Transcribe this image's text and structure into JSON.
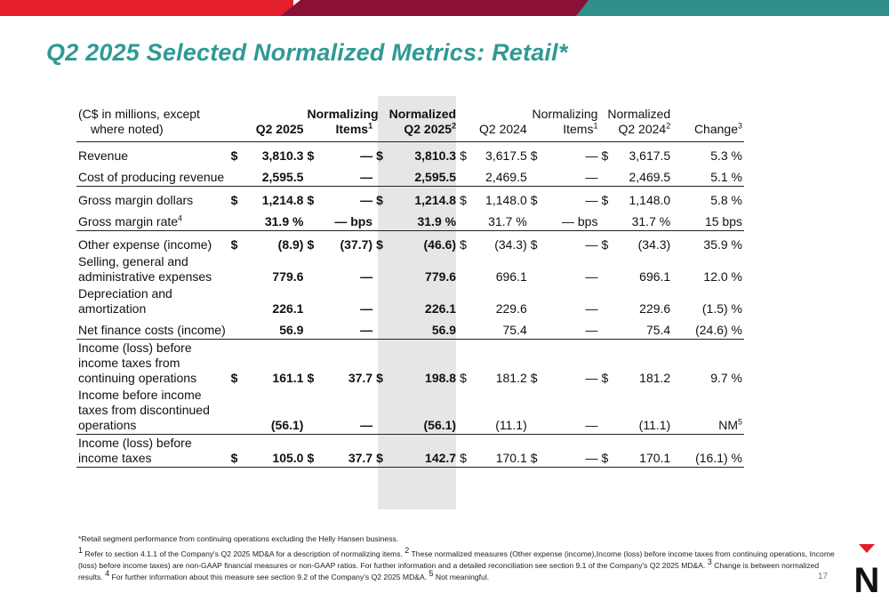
{
  "page": {
    "title": "Q2 2025 Selected Normalized Metrics: Retail*",
    "page_number": "17"
  },
  "brand_colors": {
    "red": "#e41e2b",
    "maroon": "#8b1035",
    "teal": "#2f8f8b",
    "title_teal": "#2e9a94"
  },
  "table": {
    "header": {
      "label_line1": "(C$ in millions, except",
      "label_line2": "where noted)",
      "q2_2025": "Q2 2025",
      "norm_items_line1": "Normalizing",
      "norm_items_line2": "Items",
      "norm_items_sup": "1",
      "normalized_q2_2025_line1": "Normalized",
      "normalized_q2_2025_line2": "Q2 2025",
      "normalized_q2_2025_sup": "2",
      "q2_2024": "Q2 2024",
      "norm_items_2024_line1": "Normalizing",
      "norm_items_2024_line2": "Items",
      "norm_items_2024_sup": "1",
      "normalized_q2_2024_line1": "Normalized",
      "normalized_q2_2024_line2": "Q2 2024",
      "normalized_q2_2024_sup": "2",
      "change": "Change",
      "change_sup": "3"
    },
    "rows": [
      {
        "label": "Revenue",
        "label_sup": "",
        "cur": "$",
        "q2_2025": "3,810.3",
        "norm": "—",
        "normalized_2025": "3,810.3",
        "q2_2024": "3,617.5",
        "norm_2024": "—",
        "normalized_2024": "3,617.5",
        "change": "5.3 %",
        "change_sup": ""
      },
      {
        "label": "Cost of producing revenue",
        "label_sup": "",
        "cur": "",
        "q2_2025": "2,595.5",
        "norm": "—",
        "normalized_2025": "2,595.5",
        "q2_2024": "2,469.5",
        "norm_2024": "—",
        "normalized_2024": "2,469.5",
        "change": "5.1 %",
        "change_sup": ""
      },
      {
        "label": "Gross margin dollars",
        "label_sup": "",
        "cur": "$",
        "q2_2025": "1,214.8",
        "norm": "—",
        "normalized_2025": "1,214.8",
        "q2_2024": "1,148.0",
        "norm_2024": "—",
        "normalized_2024": "1,148.0",
        "change": "5.8 %",
        "change_sup": ""
      },
      {
        "label": "Gross margin rate",
        "label_sup": "4",
        "cur": "",
        "q2_2025": "31.9 %",
        "norm": "— bps",
        "normalized_2025": "31.9 %",
        "q2_2024": "31.7 %",
        "norm_2024": "— bps",
        "normalized_2024": "31.7 %",
        "change": "15 bps",
        "change_sup": ""
      },
      {
        "label": "Other expense (income)",
        "label_sup": "",
        "cur": "$",
        "q2_2025": "(8.9)",
        "norm": "(37.7)",
        "normalized_2025": "(46.6)",
        "q2_2024": "(34.3)",
        "norm_2024": "—",
        "normalized_2024": "(34.3)",
        "change": "35.9 %",
        "change_sup": ""
      },
      {
        "label": "Selling, general and administrative expenses",
        "label_sup": "",
        "cur": "",
        "q2_2025": "779.6",
        "norm": "—",
        "normalized_2025": "779.6",
        "q2_2024": "696.1",
        "norm_2024": "—",
        "normalized_2024": "696.1",
        "change": "12.0 %",
        "change_sup": ""
      },
      {
        "label": "Depreciation and amortization",
        "label_sup": "",
        "cur": "",
        "q2_2025": "226.1",
        "norm": "—",
        "normalized_2025": "226.1",
        "q2_2024": "229.6",
        "norm_2024": "—",
        "normalized_2024": "229.6",
        "change": "(1.5) %",
        "change_sup": ""
      },
      {
        "label": "Net finance costs (income)",
        "label_sup": "",
        "cur": "",
        "q2_2025": "56.9",
        "norm": "—",
        "normalized_2025": "56.9",
        "q2_2024": "75.4",
        "norm_2024": "—",
        "normalized_2024": "75.4",
        "change": "(24.6) %",
        "change_sup": ""
      },
      {
        "label": "Income (loss) before income taxes from continuing operations",
        "label_sup": "",
        "cur": "$",
        "q2_2025": "161.1",
        "norm": "37.7",
        "normalized_2025": "198.8",
        "q2_2024": "181.2",
        "norm_2024": "—",
        "normalized_2024": "181.2",
        "change": "9.7 %",
        "change_sup": ""
      },
      {
        "label": "Income before income taxes from discontinued operations",
        "label_sup": "",
        "cur": "",
        "q2_2025": "(56.1)",
        "norm": "—",
        "normalized_2025": "(56.1)",
        "q2_2024": "(11.1)",
        "norm_2024": "—",
        "normalized_2024": "(11.1)",
        "change": "NM",
        "change_sup": "5"
      },
      {
        "label": "Income (loss) before income taxes",
        "label_sup": "",
        "cur": "$",
        "q2_2025": "105.0",
        "norm": "37.7",
        "normalized_2025": "142.7",
        "q2_2024": "170.1",
        "norm_2024": "—",
        "normalized_2024": "170.1",
        "change": "(16.1) %",
        "change_sup": ""
      }
    ]
  },
  "footnotes": {
    "retail_note": "*Retail segment performance from continuing operations excluding the Helly Hansen business.",
    "n1_sup": "1",
    "n1": " Refer to section 4.1.1 of the Company's Q2 2025 MD&A for a description of normalizing items. ",
    "n2_sup": "2",
    "n2": " These normalized measures (Other expense (income),Income (loss) before income taxes from continuing operations, Income (loss) before income taxes) are non-GAAP financial measures or non-GAAP ratios. For further information and a detailed reconciliation see section 9.1 of the Company's Q2 2025 MD&A. ",
    "n3_sup": "3",
    "n3": " Change is between normalized results. ",
    "n4_sup": "4",
    "n4": " For further information about this measure see section 9.2 of the Company's Q2 2025 MD&A. ",
    "n5_sup": "5",
    "n5": " Not meaningful."
  },
  "logo": {
    "icon": "canadian-tire-n-logo-icon",
    "letter": "N"
  }
}
